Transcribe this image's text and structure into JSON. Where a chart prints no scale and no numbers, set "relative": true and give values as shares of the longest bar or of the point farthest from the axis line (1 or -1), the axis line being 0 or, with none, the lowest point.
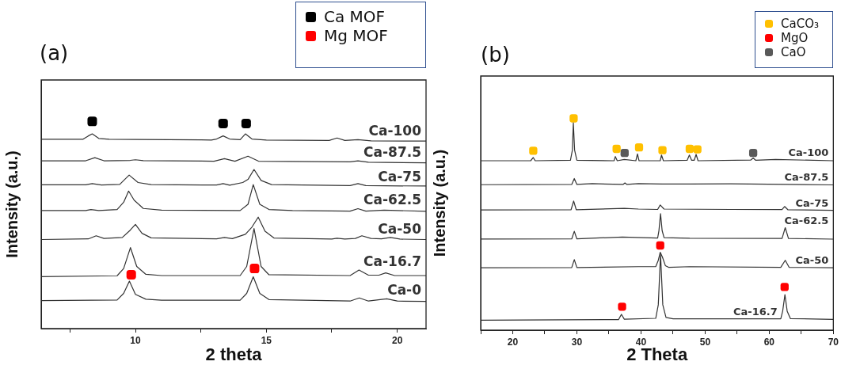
{
  "chart_data": [
    {
      "type": "line",
      "title": "(a)",
      "xlabel": "2 theta",
      "ylabel": "Intensity (a.u.)",
      "relative": true,
      "legend": "top right",
      "xlim": [
        6.4,
        21.1
      ],
      "xticks": [
        {
          "value": 7.5,
          "label": null
        },
        10,
        {
          "value": 12.5,
          "label": null
        },
        15,
        {
          "value": 17.5,
          "label": null
        },
        20
      ],
      "series": [
        {
          "name": "Ca-100",
          "color": "#333333",
          "x": [
            6.4,
            8.0,
            8.2,
            8.35,
            8.6,
            9.0,
            10,
            12.5,
            12.9,
            13.1,
            13.35,
            13.6,
            14.0,
            14.2,
            14.45,
            15,
            17.4,
            17.7,
            18.0,
            18.5,
            19,
            21.1
          ],
          "values": [
            0.914,
            0.914,
            0.93,
            0.94,
            0.918,
            0.914,
            0.913,
            0.911,
            0.91,
            0.915,
            0.93,
            0.915,
            0.912,
            0.94,
            0.915,
            0.91,
            0.908,
            0.92,
            0.908,
            0.912,
            0.906,
            0.905
          ]
        },
        {
          "name": "Ca-87.5",
          "color": "#333333",
          "x": [
            6.4,
            8.1,
            8.45,
            8.8,
            9.8,
            10.0,
            10.3,
            13.0,
            13.4,
            13.8,
            14.3,
            14.7,
            18.2,
            18.5,
            18.9,
            21.1
          ],
          "values": [
            0.81,
            0.81,
            0.825,
            0.81,
            0.812,
            0.815,
            0.811,
            0.808,
            0.82,
            0.808,
            0.832,
            0.808,
            0.805,
            0.81,
            0.803,
            0.8
          ]
        },
        {
          "name": "Ca-75",
          "color": "#333333",
          "x": [
            6.4,
            8.1,
            8.35,
            8.7,
            9.4,
            9.76,
            10.1,
            10.6,
            13.1,
            13.35,
            13.6,
            14.1,
            14.3,
            14.53,
            14.8,
            15.2,
            18.2,
            18.5,
            18.8,
            21.1
          ],
          "values": [
            0.694,
            0.694,
            0.7,
            0.693,
            0.696,
            0.741,
            0.705,
            0.695,
            0.693,
            0.7,
            0.692,
            0.705,
            0.72,
            0.768,
            0.715,
            0.695,
            0.69,
            0.7,
            0.69,
            0.688
          ]
        },
        {
          "name": "Ca-62.5",
          "color": "#333333",
          "x": [
            6.4,
            8.1,
            8.3,
            8.6,
            9.3,
            9.55,
            9.74,
            9.95,
            10.3,
            11,
            14.0,
            14.3,
            14.5,
            14.75,
            15.1,
            16,
            18.2,
            18.5,
            18.8,
            19.5,
            21.1
          ],
          "values": [
            0.57,
            0.57,
            0.575,
            0.57,
            0.575,
            0.61,
            0.664,
            0.62,
            0.58,
            0.572,
            0.57,
            0.6,
            0.695,
            0.6,
            0.575,
            0.57,
            0.567,
            0.579,
            0.567,
            0.572,
            0.566
          ]
        },
        {
          "name": "Ca-50",
          "color": "#333333",
          "x": [
            6.4,
            8.2,
            8.5,
            8.8,
            9.5,
            9.8,
            10.0,
            10.25,
            10.6,
            13.1,
            13.4,
            13.7,
            14.2,
            14.45,
            14.69,
            14.95,
            15.3,
            17.5,
            17.7,
            18.0,
            18.4,
            18.65,
            19.0,
            19.4,
            19.74,
            20.1,
            21.1
          ],
          "values": [
            0.43,
            0.433,
            0.448,
            0.435,
            0.44,
            0.475,
            0.503,
            0.46,
            0.438,
            0.433,
            0.44,
            0.434,
            0.455,
            0.49,
            0.538,
            0.47,
            0.437,
            0.432,
            0.436,
            0.432,
            0.435,
            0.448,
            0.435,
            0.433,
            0.44,
            0.432,
            0.43
          ]
        },
        {
          "name": "Ca-16.7",
          "color": "#333333",
          "x": [
            6.4,
            9.3,
            9.55,
            9.81,
            10.05,
            10.4,
            11,
            14.0,
            14.25,
            14.53,
            14.8,
            15.1,
            18.2,
            18.54,
            18.9,
            19.3,
            19.56,
            19.9,
            21.1
          ],
          "values": [
            0.251,
            0.255,
            0.29,
            0.391,
            0.3,
            0.262,
            0.256,
            0.256,
            0.3,
            0.483,
            0.3,
            0.26,
            0.256,
            0.283,
            0.258,
            0.258,
            0.269,
            0.256,
            0.256
          ]
        },
        {
          "name": "Ca-0",
          "color": "#333333",
          "x": [
            6.4,
            9.3,
            9.55,
            9.77,
            10.0,
            10.4,
            11,
            14.0,
            14.25,
            14.5,
            14.75,
            15.1,
            18.2,
            18.55,
            18.9,
            19.6,
            20,
            21.1
          ],
          "values": [
            0.135,
            0.138,
            0.17,
            0.229,
            0.165,
            0.142,
            0.137,
            0.137,
            0.17,
            0.25,
            0.17,
            0.14,
            0.133,
            0.148,
            0.133,
            0.144,
            0.133,
            0.131
          ]
        },
        {
          "name": "Ca MOF",
          "type": "scatter",
          "marker": "square",
          "color": "#000000",
          "x": [
            8.35,
            13.35,
            14.23
          ],
          "values": [
            1.0,
            0.99,
            0.99
          ]
        },
        {
          "name": "Mg MOF",
          "type": "scatter",
          "marker": "square",
          "color": "#ff0000",
          "x": [
            9.84,
            14.55
          ],
          "values": [
            0.26,
            0.29
          ]
        }
      ]
    },
    {
      "type": "line",
      "title": "(b)",
      "xlabel": "2 Theta",
      "ylabel": "Intensity (a.u.)",
      "relative": true,
      "legend": "top right",
      "xlim": [
        15,
        70
      ],
      "xticks": [
        {
          "value": 15,
          "label": null
        },
        20,
        {
          "value": 25,
          "label": null
        },
        30,
        {
          "value": 35,
          "label": null
        },
        40,
        {
          "value": 45,
          "label": null
        },
        50,
        {
          "value": 55,
          "label": null
        },
        60,
        {
          "value": 65,
          "label": null
        },
        70
      ],
      "series": [
        {
          "name": "Ca-100",
          "color": "#333333",
          "x": [
            15,
            22.8,
            23.2,
            23.5,
            29.0,
            29.3,
            29.45,
            29.65,
            30.0,
            35.8,
            36.0,
            36.3,
            37.4,
            39.2,
            39.45,
            39.7,
            43.0,
            43.2,
            43.5,
            47.2,
            47.55,
            47.9,
            48.3,
            48.6,
            48.9,
            57.1,
            57.5,
            57.9,
            61,
            70
          ],
          "values": [
            0.8,
            0.8,
            0.815,
            0.8,
            0.802,
            0.85,
            0.979,
            0.85,
            0.802,
            0.8,
            0.82,
            0.8,
            0.806,
            0.8,
            0.832,
            0.8,
            0.8,
            0.827,
            0.8,
            0.802,
            0.827,
            0.802,
            0.802,
            0.83,
            0.8,
            0.803,
            0.813,
            0.802,
            0.806,
            0.8
          ]
        },
        {
          "name": "Ca-87.5",
          "color": "#333333",
          "x": [
            15,
            29.2,
            29.6,
            30.0,
            32.4,
            37.2,
            37.5,
            37.8,
            39.6,
            43.3,
            47.7,
            54,
            70
          ],
          "values": [
            0.687,
            0.688,
            0.716,
            0.688,
            0.692,
            0.688,
            0.695,
            0.688,
            0.692,
            0.69,
            0.69,
            0.691,
            0.686
          ]
        },
        {
          "name": "Ca-75",
          "color": "#333333",
          "x": [
            15,
            29.1,
            29.5,
            29.9,
            37.4,
            39.6,
            42.6,
            43.0,
            43.6,
            54,
            62.0,
            62.4,
            62.9,
            70
          ],
          "values": [
            0.568,
            0.569,
            0.61,
            0.569,
            0.575,
            0.572,
            0.57,
            0.591,
            0.572,
            0.57,
            0.57,
            0.584,
            0.569,
            0.566
          ]
        },
        {
          "name": "Ca-62.5",
          "color": "#333333",
          "x": [
            15,
            29.2,
            29.6,
            30.0,
            37.1,
            42.6,
            42.8,
            43.05,
            43.3,
            43.6,
            47.6,
            62.0,
            62.5,
            63.0,
            70
          ],
          "values": [
            0.43,
            0.431,
            0.467,
            0.431,
            0.44,
            0.435,
            0.47,
            0.55,
            0.47,
            0.437,
            0.434,
            0.433,
            0.484,
            0.433,
            0.43
          ]
        },
        {
          "name": "Ca-50",
          "color": "#333333",
          "x": [
            15,
            29.2,
            29.6,
            30.0,
            39.6,
            42.3,
            42.7,
            43.0,
            43.35,
            43.8,
            44.3,
            47.6,
            61.8,
            62.5,
            63.1,
            70
          ],
          "values": [
            0.295,
            0.296,
            0.333,
            0.296,
            0.3,
            0.3,
            0.33,
            0.368,
            0.345,
            0.305,
            0.297,
            0.3,
            0.297,
            0.33,
            0.297,
            0.295
          ]
        },
        {
          "name": "Ca-16.7",
          "color": "#333333",
          "x": [
            15,
            36.5,
            36.95,
            37.4,
            42.3,
            42.7,
            43.05,
            43.4,
            43.9,
            45,
            61.8,
            62.1,
            62.45,
            62.8,
            63.3,
            70
          ],
          "values": [
            0.047,
            0.05,
            0.075,
            0.052,
            0.056,
            0.12,
            0.36,
            0.12,
            0.06,
            0.054,
            0.054,
            0.09,
            0.168,
            0.09,
            0.055,
            0.051
          ]
        },
        {
          "name": "CaCO₃",
          "type": "scatter",
          "marker": "square",
          "color": "#ffc000",
          "x": [
            23.2,
            29.5,
            36.2,
            39.7,
            43.35,
            47.6,
            48.8
          ],
          "values": [
            0.847,
            1.0,
            0.856,
            0.863,
            0.85,
            0.856,
            0.854
          ]
        },
        {
          "name": "MgO",
          "type": "scatter",
          "marker": "square",
          "color": "#ff0000",
          "x": [
            37.05,
            43.0,
            62.4
          ],
          "values": [
            0.111,
            0.4,
            0.204
          ]
        },
        {
          "name": "CaO",
          "type": "scatter",
          "marker": "square",
          "color": "#595959",
          "x": [
            37.45,
            57.5
          ],
          "values": [
            0.837,
            0.837
          ]
        }
      ]
    }
  ]
}
